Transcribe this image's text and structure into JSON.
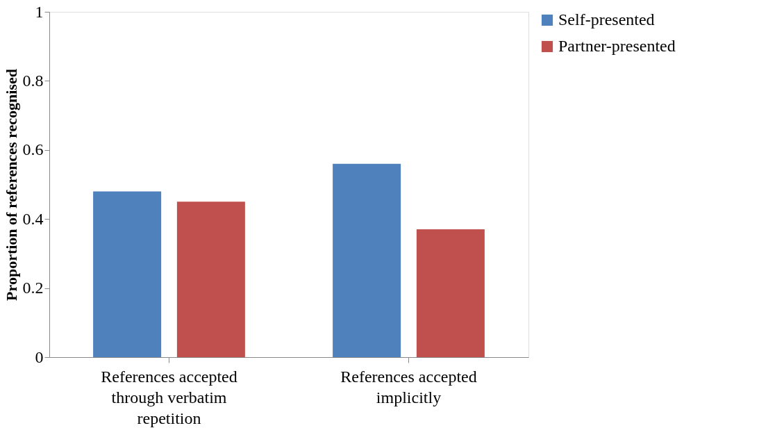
{
  "chart_data": {
    "type": "bar",
    "ylabel": "Proportion of references recognised",
    "categories": [
      "References accepted through verbatim repetition",
      "References accepted implicitly"
    ],
    "series": [
      {
        "name": "Self-presented",
        "color": "#4f81bd",
        "values": [
          0.48,
          0.56
        ]
      },
      {
        "name": "Partner-presented",
        "color": "#c0504d",
        "values": [
          0.45,
          0.37
        ]
      }
    ],
    "ylim": [
      0,
      1
    ],
    "yticks": [
      0,
      0.2,
      0.4,
      0.6,
      0.8,
      1
    ],
    "grid": false,
    "legend": "right"
  }
}
